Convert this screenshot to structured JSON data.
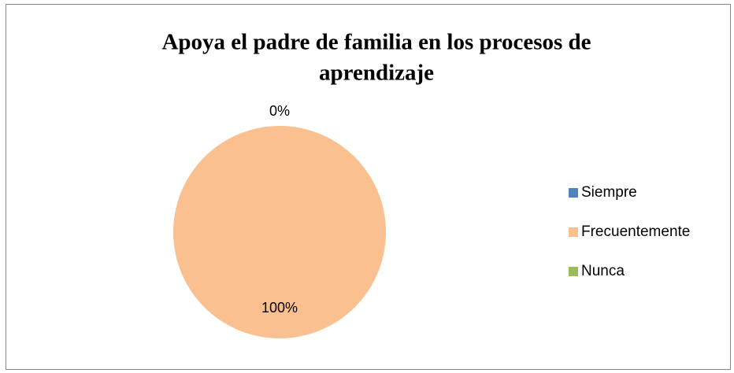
{
  "chart_data": {
    "type": "pie",
    "title": [
      "Apoya el padre de familia en los procesos de",
      "aprendizaje"
    ],
    "categories": [
      "Siempre",
      "Frecuentemente",
      "Nunca"
    ],
    "values": [
      0,
      100,
      0
    ],
    "value_labels": [
      "0%",
      "100%",
      null
    ],
    "colors": [
      "#4f81bd",
      "#fac090",
      "#9bbb59"
    ],
    "legend": "right"
  }
}
